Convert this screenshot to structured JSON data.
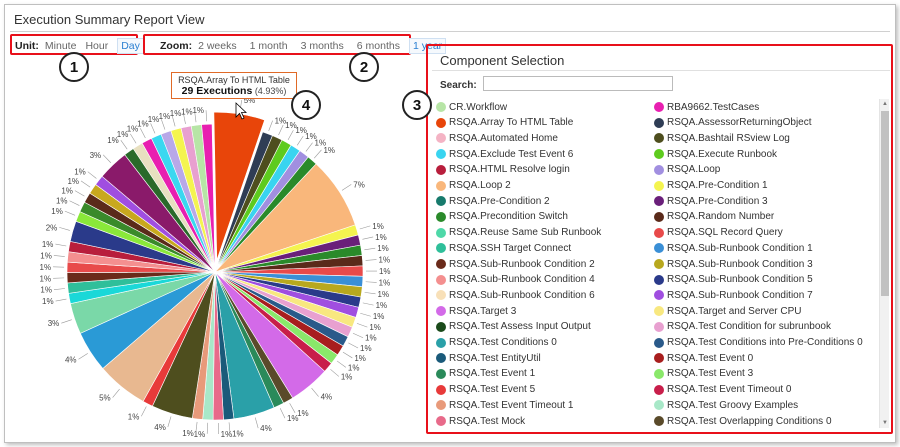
{
  "window": {
    "title": "Execution Summary Report View"
  },
  "unit": {
    "label": "Unit:",
    "options": [
      "Minute",
      "Hour",
      "Day"
    ],
    "selected": "Day"
  },
  "zoom": {
    "label": "Zoom:",
    "options": [
      "2 weeks",
      "1 month",
      "3 months",
      "6 months",
      "1 year"
    ],
    "selected": "1 year"
  },
  "badges": [
    "1",
    "2",
    "3",
    "4"
  ],
  "tooltip": {
    "name": "RSQA.Array To HTML Table",
    "value": "29 Executions",
    "percent": "(4.93%)"
  },
  "component_selection": {
    "title": "Component Selection",
    "search_label": "Search:",
    "search_value": "",
    "items": [
      {
        "name": "CR.Workflow",
        "color": "#b7e5a6"
      },
      {
        "name": "RBA9662.TestCases",
        "color": "#e81fb0"
      },
      {
        "name": "RSQA.Array To HTML Table",
        "color": "#e8450a"
      },
      {
        "name": "RSQA.AssessorReturningObject",
        "color": "#2f3d55"
      },
      {
        "name": "RSQA.Automated Home",
        "color": "#f4b3c4"
      },
      {
        "name": "RSQA.Bashtail RSview Log",
        "color": "#4e4e1e"
      },
      {
        "name": "RSQA.Exclude Test Event 6",
        "color": "#39d4f0"
      },
      {
        "name": "RSQA.Execute Runbook",
        "color": "#5ecb1e"
      },
      {
        "name": "RSQA.HTML Resolve login",
        "color": "#b81e3c"
      },
      {
        "name": "RSQA.Loop",
        "color": "#a18fe0"
      },
      {
        "name": "RSQA.Loop 2",
        "color": "#f9b77b"
      },
      {
        "name": "RSQA.Pre-Condition 1",
        "color": "#f4f44f"
      },
      {
        "name": "RSQA.Pre-Condition 2",
        "color": "#177a6c"
      },
      {
        "name": "RSQA.Pre-Condition 3",
        "color": "#6a1f7a"
      },
      {
        "name": "RSQA.Precondition Switch",
        "color": "#2a8a2a"
      },
      {
        "name": "RSQA.Random Number",
        "color": "#5a2a1a"
      },
      {
        "name": "RSQA.Reuse Same Sub Runbook",
        "color": "#4ed8a8"
      },
      {
        "name": "RSQA.SQL Record Query",
        "color": "#e84a4a"
      },
      {
        "name": "RSQA.SSH Target Connect",
        "color": "#2fbf9a"
      },
      {
        "name": "RSQA.Sub-Runbook Condition 1",
        "color": "#3a8fd6"
      },
      {
        "name": "RSQA.Sub-Runbook Condition 2",
        "color": "#6a2a1a"
      },
      {
        "name": "RSQA.Sub-Runbook Condition 3",
        "color": "#b8a81e"
      },
      {
        "name": "RSQA.Sub-Runbook Condition 4",
        "color": "#f48f8f"
      },
      {
        "name": "RSQA.Sub-Runbook Condition 5",
        "color": "#2a3a8a"
      },
      {
        "name": "RSQA.Sub-Runbook Condition 6",
        "color": "#f8e0b8"
      },
      {
        "name": "RSQA.Sub-Runbook Condition 7",
        "color": "#a04ee0"
      },
      {
        "name": "RSQA.Target 3",
        "color": "#d36ae8"
      },
      {
        "name": "RSQA.Target and Server CPU",
        "color": "#f8e880"
      },
      {
        "name": "RSQA.Test Assess Input Output",
        "color": "#1a4a1a"
      },
      {
        "name": "RSQA.Test Condition for subrunbook",
        "color": "#e8a0d0"
      },
      {
        "name": "RSQA.Test Conditions 0",
        "color": "#2aa0a8"
      },
      {
        "name": "RSQA.Test Conditions into Pre-Conditions 0",
        "color": "#2a5a8a"
      },
      {
        "name": "RSQA.Test EntityUtil",
        "color": "#1a5a7a"
      },
      {
        "name": "RSQA.Test Event 0",
        "color": "#a81e1e"
      },
      {
        "name": "RSQA.Test Event 1",
        "color": "#2a8a5a"
      },
      {
        "name": "RSQA.Test Event 3",
        "color": "#8ae86a"
      },
      {
        "name": "RSQA.Test Event 5",
        "color": "#e83a3a"
      },
      {
        "name": "RSQA.Test Event Timeout 0",
        "color": "#c81e4a"
      },
      {
        "name": "RSQA.Test Event Timeout 1",
        "color": "#e89a7a"
      },
      {
        "name": "RSQA.Test Groovy Examples",
        "color": "#a8e8c8"
      },
      {
        "name": "RSQA.Test Mock",
        "color": "#e86a8a"
      },
      {
        "name": "RSQA.Test Overlapping Conditions 0",
        "color": "#5a4a2a"
      }
    ]
  },
  "chart_data": {
    "type": "pie",
    "highlighted": "RSQA.Array To HTML Table",
    "slices": [
      {
        "label": "5%",
        "value": 4.93,
        "color": "#e8450a"
      },
      {
        "label": "1%",
        "value": 1,
        "color": "#2f3d55"
      },
      {
        "label": "1%",
        "value": 1,
        "color": "#4e4e1e"
      },
      {
        "label": "1%",
        "value": 1,
        "color": "#5ecb1e"
      },
      {
        "label": "1%",
        "value": 1,
        "color": "#39d4f0"
      },
      {
        "label": "1%",
        "value": 1,
        "color": "#a18fe0"
      },
      {
        "label": "1%",
        "value": 1,
        "color": "#2a8a2a"
      },
      {
        "label": "7%",
        "value": 7,
        "color": "#f9b77b"
      },
      {
        "label": "1%",
        "value": 1,
        "color": "#f4f44f"
      },
      {
        "label": "1%",
        "value": 1,
        "color": "#6a1f7a"
      },
      {
        "label": "1%",
        "value": 1,
        "color": "#2a8a2a"
      },
      {
        "label": "1%",
        "value": 1,
        "color": "#5a2a1a"
      },
      {
        "label": "1%",
        "value": 1,
        "color": "#e84a4a"
      },
      {
        "label": "1%",
        "value": 1,
        "color": "#3a8fd6"
      },
      {
        "label": "1%",
        "value": 1,
        "color": "#b8a81e"
      },
      {
        "label": "1%",
        "value": 1,
        "color": "#2a3a8a"
      },
      {
        "label": "1%",
        "value": 1,
        "color": "#a04ee0"
      },
      {
        "label": "1%",
        "value": 1,
        "color": "#f8e880"
      },
      {
        "label": "1%",
        "value": 1,
        "color": "#e8a0d0"
      },
      {
        "label": "1%",
        "value": 1,
        "color": "#2a5a8a"
      },
      {
        "label": "1%",
        "value": 1,
        "color": "#a81e1e"
      },
      {
        "label": "1%",
        "value": 1,
        "color": "#8ae86a"
      },
      {
        "label": "1%",
        "value": 1,
        "color": "#c81e4a"
      },
      {
        "label": "4%",
        "value": 4,
        "color": "#d36ae8"
      },
      {
        "label": "1%",
        "value": 1,
        "color": "#5a4a2a"
      },
      {
        "label": "1%",
        "value": 1,
        "color": "#2a8a5a"
      },
      {
        "label": "4%",
        "value": 4,
        "color": "#2aa0a8"
      },
      {
        "label": "1%",
        "value": 1,
        "color": "#1a5a7a"
      },
      {
        "label": "1%",
        "value": 1,
        "color": "#e86a8a"
      },
      {
        "label": "1%",
        "value": 1,
        "color": "#a8e8c8"
      },
      {
        "label": "1%",
        "value": 1,
        "color": "#e89a7a"
      },
      {
        "label": "4%",
        "value": 4,
        "color": "#4e4e1e"
      },
      {
        "label": "1%",
        "value": 1,
        "color": "#e83a3a"
      },
      {
        "label": "5%",
        "value": 5,
        "color": "#e8b890"
      },
      {
        "label": "4%",
        "value": 4,
        "color": "#2a9ad6"
      },
      {
        "label": "3%",
        "value": 3,
        "color": "#7ad8a8"
      },
      {
        "label": "1%",
        "value": 1,
        "color": "#1ad8d8"
      },
      {
        "label": "1%",
        "value": 1,
        "color": "#2fbf9a"
      },
      {
        "label": "1%",
        "value": 1,
        "color": "#6a2a1a"
      },
      {
        "label": "1%",
        "value": 1,
        "color": "#e84a4a"
      },
      {
        "label": "1%",
        "value": 1,
        "color": "#f48f8f"
      },
      {
        "label": "1%",
        "value": 1,
        "color": "#b81e3c"
      },
      {
        "label": "2%",
        "value": 2,
        "color": "#2a3a8a"
      },
      {
        "label": "1%",
        "value": 1,
        "color": "#8ae83a"
      },
      {
        "label": "1%",
        "value": 1,
        "color": "#3a8a2a"
      },
      {
        "label": "1%",
        "value": 1,
        "color": "#5a2a1a"
      },
      {
        "label": "1%",
        "value": 1,
        "color": "#c8a81e"
      },
      {
        "label": "1%",
        "value": 1,
        "color": "#a04ee0"
      },
      {
        "label": "3%",
        "value": 3,
        "color": "#8a1a6a"
      },
      {
        "label": "1%",
        "value": 1,
        "color": "#2a6a2a"
      },
      {
        "label": "1%",
        "value": 1,
        "color": "#e8e0c0"
      },
      {
        "label": "1%",
        "value": 1,
        "color": "#e81fb0"
      },
      {
        "label": "1%",
        "value": 1,
        "color": "#3ad8f0"
      },
      {
        "label": "1%",
        "value": 1,
        "color": "#b8a8e8"
      },
      {
        "label": "1%",
        "value": 1,
        "color": "#f4f44f"
      },
      {
        "label": "1%",
        "value": 1,
        "color": "#e8a0d0"
      },
      {
        "label": "1%",
        "value": 1,
        "color": "#b7e5a6"
      },
      {
        "label": "1%",
        "value": 1,
        "color": "#e81fb0"
      }
    ]
  }
}
